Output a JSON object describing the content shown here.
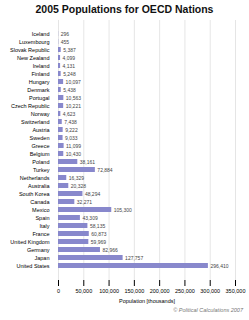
{
  "chart_data": {
    "type": "bar",
    "orientation": "horizontal",
    "title": "2005 Populations for OECD Nations",
    "xlabel": "Population [thousands]",
    "annotations": [
      "© Political Calculations 2007"
    ],
    "categories": [
      "Iceland",
      "Luxembourg",
      "Slovak Republic",
      "New Zealand",
      "Ireland",
      "Finland",
      "Hungary",
      "Denmark",
      "Portugal",
      "Czech Republic",
      "Norway",
      "Switzerland",
      "Austria",
      "Sweden",
      "Greece",
      "Belgium",
      "Poland",
      "Turkey",
      "Netherlands",
      "Australia",
      "South Korea",
      "Canada",
      "Mexico",
      "Spain",
      "Italy",
      "France",
      "United Kingdom",
      "Germany",
      "Japan",
      "United States"
    ],
    "values": [
      296,
      455,
      5387,
      4099,
      4131,
      5248,
      10097,
      5438,
      10563,
      10221,
      4623,
      7438,
      9222,
      9033,
      11099,
      10430,
      38161,
      72884,
      16329,
      20328,
      48294,
      32271,
      105300,
      43309,
      58135,
      60873,
      59969,
      82966,
      127757,
      296410
    ],
    "value_labels": [
      "296",
      "455",
      "5,387",
      "4,099",
      "4,131",
      "5,248",
      "10,097",
      "5,438",
      "10,563",
      "10,221",
      "4,623",
      "7,438",
      "9,222",
      "9,033",
      "11,099",
      "10,430",
      "38,161",
      "72,884",
      "16,329",
      "20,328",
      "48,294",
      "32,271",
      "105,300",
      "43,309",
      "58,135",
      "60,873",
      "59,969",
      "82,966",
      "127,757",
      "296,410"
    ],
    "data_labels": true,
    "color": "#8888cc",
    "xlim": [
      0,
      350000
    ],
    "xticks": [
      0,
      {
        "value": 50000,
        "label": "50,000"
      },
      {
        "value": 100000,
        "label": "100,000"
      },
      {
        "value": 150000,
        "label": "150,000"
      },
      {
        "value": 200000,
        "label": "200,000"
      },
      {
        "value": 250000,
        "label": "250,000"
      },
      {
        "value": 300000,
        "label": "300,000"
      },
      {
        "value": 350000,
        "label": "350,000"
      }
    ],
    "grid": true
  }
}
